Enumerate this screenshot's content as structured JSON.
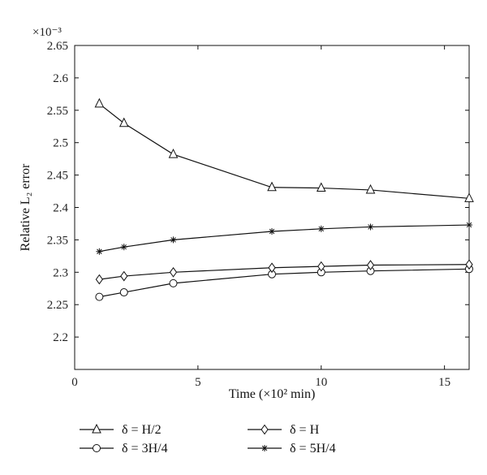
{
  "chart_data": {
    "type": "line",
    "xlabel": "Time (×10² min)",
    "ylabel": "Relative L₂ error",
    "y_multiplier": "×10⁻³",
    "xlim": [
      0,
      16
    ],
    "ylim": [
      2.15,
      2.65
    ],
    "x_ticks": [
      0,
      5,
      10,
      15
    ],
    "y_ticks": [
      2.2,
      2.25,
      2.3,
      2.35,
      2.4,
      2.45,
      2.5,
      2.55,
      2.6,
      2.65
    ],
    "grid": false,
    "legend_position": "bottom",
    "x": [
      1,
      2,
      4,
      8,
      10,
      12,
      16
    ],
    "series": [
      {
        "name": "δ = H/2",
        "marker": "triangle",
        "values": [
          2.56,
          2.53,
          2.482,
          2.431,
          2.43,
          2.427,
          2.414
        ]
      },
      {
        "name": "δ = 3H/4",
        "marker": "circle",
        "values": [
          2.262,
          2.269,
          2.283,
          2.297,
          2.3,
          2.302,
          2.305
        ]
      },
      {
        "name": "δ = H",
        "marker": "diamond",
        "values": [
          2.289,
          2.294,
          2.3,
          2.307,
          2.309,
          2.311,
          2.312
        ]
      },
      {
        "name": "δ = 5H/4",
        "marker": "star",
        "values": [
          2.332,
          2.339,
          2.35,
          2.363,
          2.367,
          2.37,
          2.373
        ]
      }
    ]
  }
}
